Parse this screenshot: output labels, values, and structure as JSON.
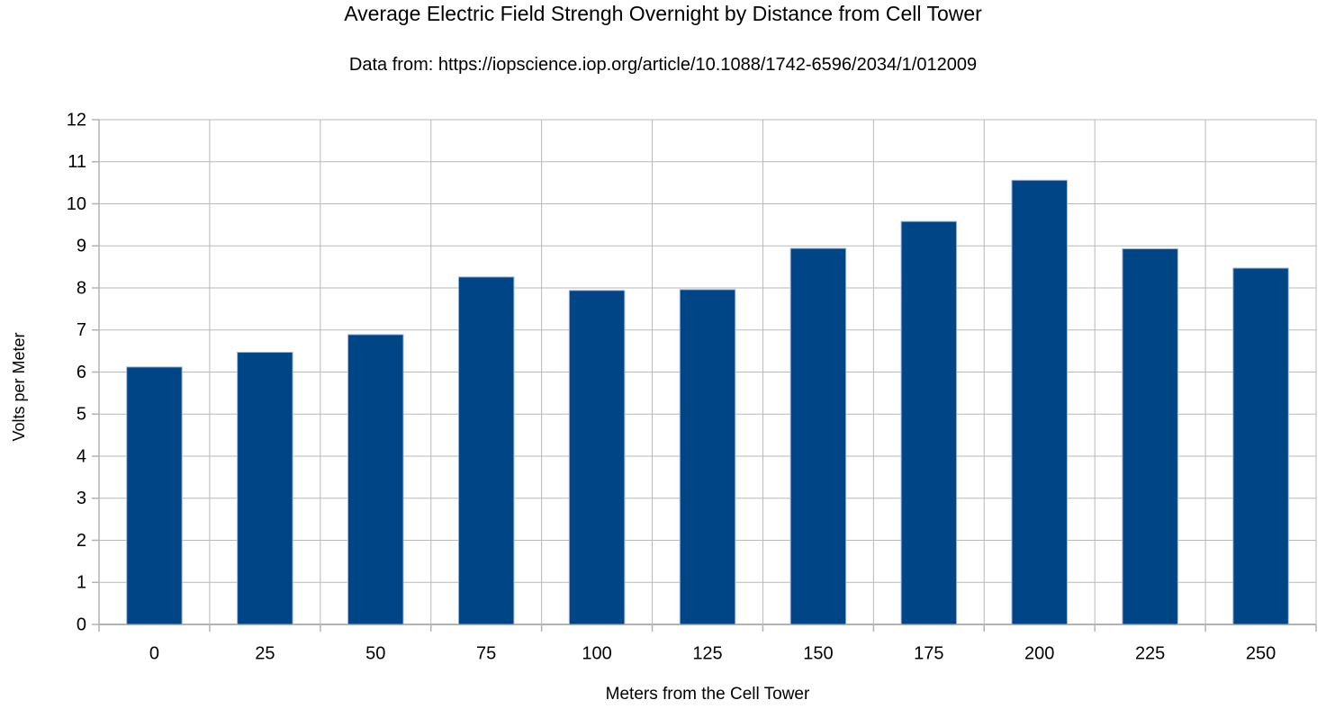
{
  "chart_data": {
    "type": "bar",
    "title": "Average Electric Field Strengh Overnight by Distance from Cell Tower",
    "subtitle": "Data from: https://iopscience.iop.org/article/10.1088/1742-6596/2034/1/012009",
    "xlabel": "Meters from the Cell Tower",
    "ylabel": "Volts per Meter",
    "categories": [
      "0",
      "25",
      "50",
      "75",
      "100",
      "125",
      "150",
      "175",
      "200",
      "225",
      "250"
    ],
    "values": [
      6.12,
      6.47,
      6.89,
      8.26,
      7.94,
      7.96,
      8.94,
      9.58,
      10.56,
      8.93,
      8.47
    ],
    "ylim": [
      0,
      12
    ],
    "ytick_step": 1,
    "grid": "horizontal-and-vertical-boundaries",
    "legend": "none",
    "colors": {
      "bar_fill": "#004586",
      "bar_border": "#9db4d6",
      "gridline": "#b9b9b9",
      "axis": "#b3b3b3",
      "text": "#000000",
      "background": "#ffffff"
    }
  }
}
